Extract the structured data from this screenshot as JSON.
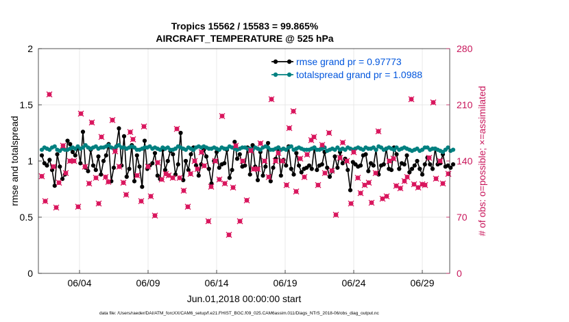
{
  "chart_data": {
    "type": "line",
    "title_line1": "Tropics 15562 / 15583 = 99.865%",
    "title_line2": "AIRCRAFT_TEMPERATURE @ 525 hPa",
    "xlabel": "Jun.01,2018 00:00:00 start",
    "ylabel_left": "rmse and totalspread",
    "ylabel_right": "# of obs: o=possible; ×=assimilated",
    "footer": "data file: /Users/raeder/DAI/ATM_forcXX/CAM6_setup/f.e21.FHIST_BGC.f09_025.CAM6assim.011/Diags_NTrS_2018-06/obs_diag_output.nc",
    "x_range_days": [
      0,
      30
    ],
    "x_ticks": [
      {
        "day": 3,
        "label": "06/04"
      },
      {
        "day": 8,
        "label": "06/09"
      },
      {
        "day": 13,
        "label": "06/14"
      },
      {
        "day": 18,
        "label": "06/19"
      },
      {
        "day": 23,
        "label": "06/24"
      },
      {
        "day": 28,
        "label": "06/29"
      }
    ],
    "ylim_left": [
      0,
      2
    ],
    "yticks_left": [
      "0",
      "0.5",
      "1",
      "1.5",
      "2"
    ],
    "yticks_left_values": [
      0,
      0.5,
      1,
      1.5,
      2
    ],
    "ylim_right": [
      0,
      280
    ],
    "yticks_right": [
      "0",
      "70",
      "140",
      "210",
      "280"
    ],
    "yticks_right_values": [
      0,
      70,
      140,
      210,
      280
    ],
    "grid": true,
    "legend": "top-right",
    "colors": {
      "rmse": "#000000",
      "spread": "#008080",
      "obs": "#d9175e",
      "legend_text": "#0055dd",
      "right_axis": "#c8155a"
    },
    "series": [
      {
        "name": "rmse grand pr = 0.97773",
        "color": "#000000",
        "values": [
          1.05,
          0.98,
          0.96,
          1.01,
          0.92,
          0.78,
          1.06,
          0.95,
          0.84,
          0.88,
          1.18,
          1.15,
          1.08,
          1.05,
          1.12,
          0.98,
          1.26,
          0.94,
          0.91,
          1.1,
          0.96,
          0.92,
          1.04,
          0.88,
          1.0,
          1.05,
          1.15,
          0.82,
          0.94,
          1.13,
          1.29,
          0.96,
          1.22,
          0.86,
          0.93,
          1.14,
          0.82,
          1.05,
          0.95,
          0.77,
          1.18,
          0.93,
          0.96,
          0.98,
          1.07,
          0.87,
          0.84,
          1.1,
          0.92,
          1.0,
          1.09,
          1.06,
          0.88,
          0.97,
          1.25,
          0.83,
          1.0,
          0.92,
          1.06,
          1.12,
          0.96,
          0.87,
          0.97,
          1.1,
          1.04,
          0.93,
          0.8,
          1.0,
          1.08,
          0.94,
          0.97,
          0.98,
          1.1,
          0.85,
          0.92,
          1.17,
          1.02,
          1.06,
          0.95,
          0.96,
          1.12,
          0.88,
          1.14,
          0.95,
          0.83,
          1.08,
          0.87,
          0.95,
          1.16,
          0.82,
          0.94,
          1.02,
          1.12,
          0.87,
          1.01,
          0.96,
          1.13,
          0.93,
          0.88,
          1.07,
          0.96,
          0.9,
          0.93,
          0.94,
          0.96,
          0.93,
          1.12,
          0.92,
          0.96,
          0.97,
          1.08,
          0.94,
          0.86,
          0.91,
          1.04,
          0.94,
          1.08,
          0.98,
          1.02,
          0.92,
          0.74,
          0.99,
          0.97,
          0.95,
          0.96,
          1.05,
          1.06,
          0.91,
          0.98,
          0.96,
          1.1,
          0.88,
          0.96,
          0.97,
          1.11,
          0.93,
          0.92,
          1.12,
          1.06,
          0.93,
          0.98,
          0.97,
          1.05,
          0.9,
          0.93,
          0.96,
          1.0,
          0.93,
          0.88,
          0.97,
          1.03,
          0.97,
          0.93,
          1.11,
          0.97,
          0.98,
          1.06,
          0.95,
          0.96,
          0.94,
          0.97
        ],
        "x_start": 0.25,
        "x_step": 0.1875
      },
      {
        "name": "totalspread grand pr = 1.0988",
        "color": "#008080",
        "values": [
          1.1,
          1.12,
          1.11,
          1.1,
          1.12,
          1.13,
          1.1,
          1.09,
          1.11,
          1.1,
          1.1,
          1.11,
          1.12,
          1.11,
          1.13,
          1.11,
          1.12,
          1.14,
          1.12,
          1.11,
          1.12,
          1.13,
          1.11,
          1.12,
          1.12,
          1.13,
          1.14,
          1.12,
          1.11,
          1.13,
          1.14,
          1.12,
          1.12,
          1.11,
          1.12,
          1.13,
          1.12,
          1.1,
          1.1,
          1.11,
          1.12,
          1.12,
          1.13,
          1.11,
          1.12,
          1.11,
          1.1,
          1.12,
          1.11,
          1.12,
          1.1,
          1.1,
          1.11,
          1.13,
          1.12,
          1.11,
          1.1,
          1.12,
          1.11,
          1.1,
          1.12,
          1.13,
          1.12,
          1.13,
          1.12,
          1.11,
          1.11,
          1.12,
          1.11,
          1.1,
          1.12,
          1.11,
          1.11,
          1.13,
          1.12,
          1.11,
          1.1,
          1.11,
          1.12,
          1.12,
          1.11,
          1.11,
          1.1,
          1.12,
          1.11,
          1.1,
          1.12,
          1.13,
          1.12,
          1.1,
          1.1,
          1.11,
          1.12,
          1.1,
          1.11,
          1.1,
          1.12,
          1.13,
          1.1,
          1.11,
          1.12,
          1.11,
          1.1,
          1.1,
          1.1,
          1.11,
          1.12,
          1.1,
          1.1,
          1.11,
          1.12,
          1.09,
          1.1,
          1.11,
          1.1,
          1.12,
          1.1,
          1.11,
          1.1,
          1.12,
          1.11,
          1.1,
          1.11,
          1.12,
          1.11,
          1.1,
          1.12,
          1.11,
          1.11,
          1.12,
          1.1,
          1.13,
          1.12,
          1.1,
          1.11,
          1.12,
          1.11,
          1.1,
          1.12,
          1.1,
          1.11,
          1.12,
          1.11,
          1.1,
          1.09,
          1.1,
          1.11,
          1.09,
          1.1,
          1.12,
          1.12,
          1.1,
          1.11,
          1.11,
          1.1,
          1.09,
          1.08,
          1.1,
          1.12,
          1.09,
          1.1
        ],
        "x_start": 0.25,
        "x_step": 0.1875
      }
    ],
    "obs_points": {
      "name": "# of obs (possible / assimilated)",
      "color": "#d9175e",
      "axis": "right",
      "days": [
        0.25,
        0.5,
        0.8,
        1.1,
        1.3,
        1.5,
        1.8,
        2.0,
        2.3,
        2.6,
        2.9,
        3.1,
        3.4,
        3.7,
        3.9,
        4.2,
        4.4,
        4.6,
        4.9,
        5.1,
        5.4,
        5.6,
        5.9,
        6.2,
        6.4,
        6.7,
        6.9,
        7.2,
        7.5,
        7.7,
        8.0,
        8.2,
        8.5,
        8.7,
        9.0,
        9.3,
        9.5,
        9.8,
        10.1,
        10.3,
        10.6,
        10.9,
        11.1,
        11.4,
        11.6,
        11.9,
        12.1,
        12.4,
        12.6,
        12.9,
        13.2,
        13.4,
        13.6,
        13.9,
        14.2,
        14.4,
        14.7,
        14.9,
        15.2,
        15.5,
        15.7,
        16.0,
        16.2,
        16.5,
        16.8,
        17.0,
        17.3,
        17.5,
        17.8,
        18.1,
        18.3,
        18.6,
        18.8,
        19.1,
        19.4,
        19.6,
        19.9,
        20.1,
        20.4,
        20.7,
        20.9,
        21.2,
        21.4,
        21.7,
        22.0,
        22.2,
        22.5,
        22.8,
        23.0,
        23.3,
        23.5,
        23.8,
        24.1,
        24.3,
        24.6,
        24.8,
        25.1,
        25.4,
        25.6,
        25.9,
        26.1,
        26.4,
        26.7,
        26.9,
        27.2,
        27.4,
        27.7,
        28.0,
        28.2,
        28.5,
        28.8,
        29.0,
        29.3,
        29.5,
        29.9
      ],
      "values": [
        121,
        90,
        223,
        133,
        82,
        113,
        159,
        125,
        140,
        140,
        83,
        199,
        133,
        112,
        188,
        119,
        87,
        170,
        120,
        114,
        191,
        152,
        133,
        113,
        98,
        176,
        167,
        122,
        90,
        183,
        133,
        96,
        72,
        138,
        117,
        124,
        122,
        119,
        180,
        119,
        103,
        83,
        124,
        140,
        130,
        151,
        134,
        65,
        108,
        140,
        117,
        196,
        112,
        48,
        107,
        159,
        65,
        140,
        91,
        153,
        130,
        130,
        162,
        140,
        120,
        217,
        140,
        150,
        140,
        110,
        181,
        202,
        102,
        143,
        120,
        148,
        166,
        170,
        110,
        160,
        125,
        175,
        128,
        73,
        144,
        163,
        140,
        87,
        151,
        119,
        100,
        110,
        113,
        88,
        125,
        177,
        93,
        96,
        140,
        143,
        109,
        106,
        115,
        120,
        217,
        111,
        107,
        111,
        110,
        144,
        213,
        118,
        140,
        112,
        124
      ]
    }
  }
}
